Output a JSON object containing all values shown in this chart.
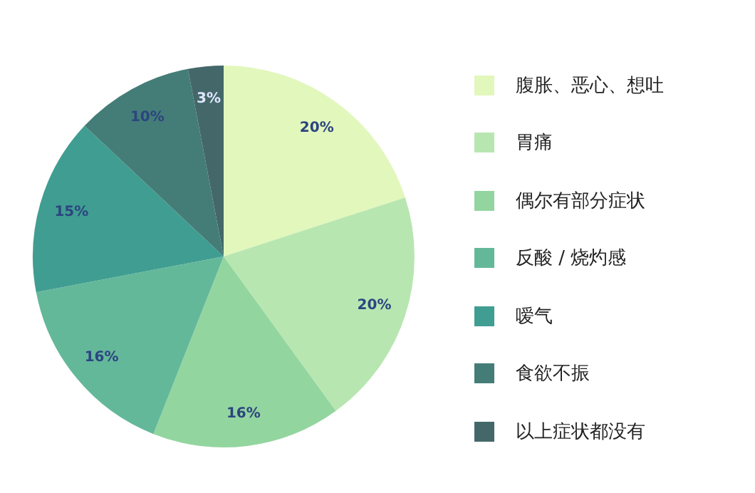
{
  "chart_data": {
    "type": "pie",
    "categories": [
      "腹胀、恶心、想吐",
      "胃痛",
      "偶尔有部分症状",
      "反酸 / 烧灼感",
      "嗳气",
      "食欲不振",
      "以上症状都没有"
    ],
    "values": [
      20,
      20,
      16,
      16,
      15,
      10,
      3
    ],
    "value_labels": [
      "20%",
      "20%",
      "16%",
      "16%",
      "15%",
      "10%",
      "3%"
    ],
    "colors": [
      "#e2f7bc",
      "#b8e6b1",
      "#93d59f",
      "#64b89a",
      "#409d91",
      "#447d77",
      "#44686a"
    ],
    "legend": "right"
  }
}
